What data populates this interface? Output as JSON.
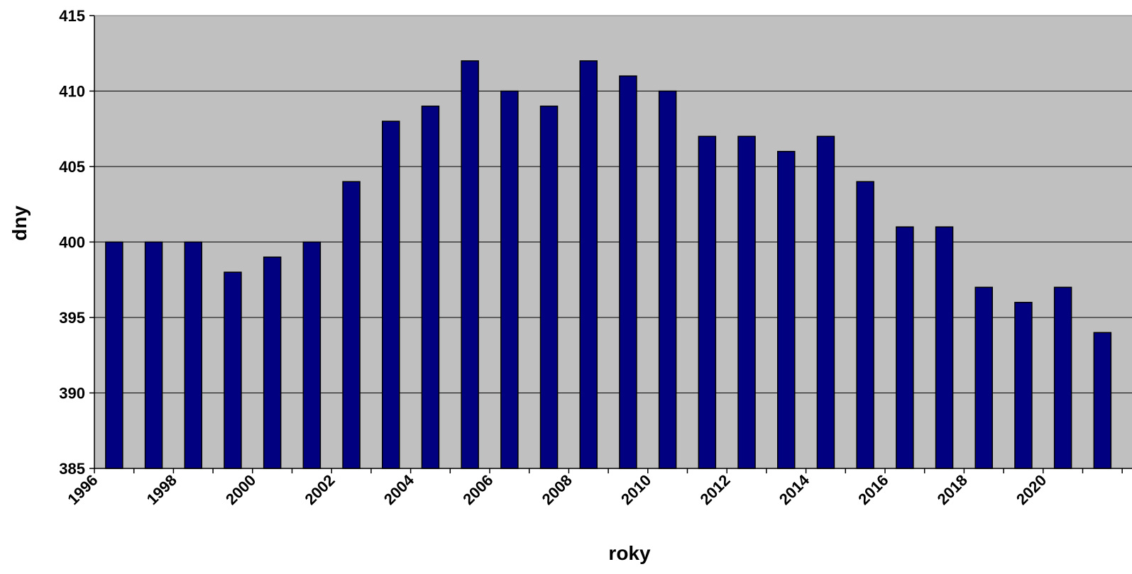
{
  "chart_data": {
    "type": "bar",
    "title": "",
    "xlabel": "roky",
    "ylabel": "dny",
    "ylim": [
      385,
      415
    ],
    "yticks": [
      385,
      390,
      395,
      400,
      405,
      410,
      415
    ],
    "x_tick_labels": [
      "1996",
      "1998",
      "2000",
      "2002",
      "2004",
      "2006",
      "2008",
      "2010",
      "2012",
      "2014",
      "2016",
      "2018",
      "2020"
    ],
    "categories": [
      "1996",
      "1997",
      "1998",
      "1999",
      "2000",
      "2001",
      "2002",
      "2003",
      "2004",
      "2005",
      "2006",
      "2007",
      "2008",
      "2009",
      "2010",
      "2011",
      "2012",
      "2013",
      "2014",
      "2015",
      "2016",
      "2017",
      "2018",
      "2019",
      "2020",
      "2021"
    ],
    "values": [
      400,
      400,
      400,
      398,
      399,
      400,
      404,
      408,
      409,
      412,
      410,
      409,
      412,
      411,
      410,
      407,
      407,
      406,
      407,
      404,
      401,
      401,
      397,
      396,
      397,
      394
    ],
    "grid": true,
    "legend": "none",
    "colors": {
      "bar": "#000080",
      "plot_bg": "#c0c0c0",
      "grid": "#000000"
    }
  }
}
